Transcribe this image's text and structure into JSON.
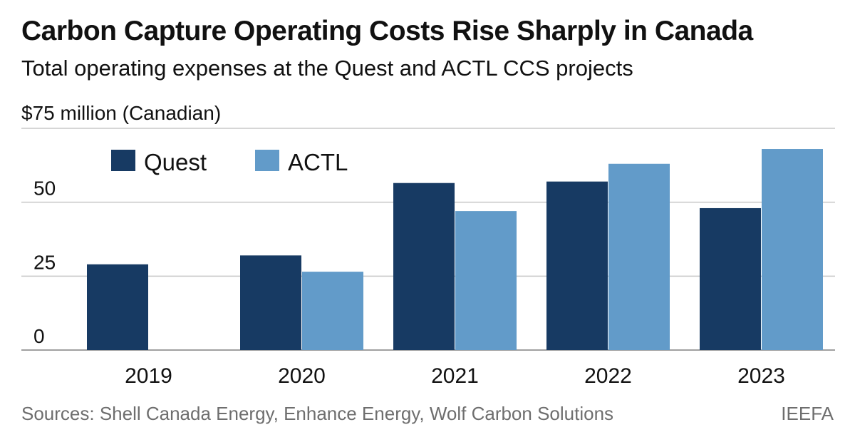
{
  "header": {
    "title": "Carbon Capture Operating Costs Rise Sharply in Canada",
    "subtitle": "Total operating expenses at the Quest and ACTL CCS projects"
  },
  "footer": {
    "source": "Sources: Shell Canada Energy, Enhance Energy, Wolf Carbon Solutions",
    "brand": "IEEFA"
  },
  "colors": {
    "quest": "#173a63",
    "actl": "#629bc9",
    "grid": "#c8c8c8",
    "baseline": "#a0a0a0"
  },
  "chart_data": {
    "type": "bar",
    "title": "Carbon Capture Operating Costs Rise Sharply in Canada",
    "subtitle": "Total operating expenses at the Quest and ACTL CCS projects",
    "ylabel": "$75 million (Canadian)",
    "xlabel": "",
    "categories": [
      "2019",
      "2020",
      "2021",
      "2022",
      "2023"
    ],
    "series": [
      {
        "name": "Quest",
        "values": [
          29,
          32,
          56.5,
          57,
          48
        ]
      },
      {
        "name": "ACTL",
        "values": [
          null,
          26.5,
          47,
          63,
          68
        ]
      }
    ],
    "ylim": [
      0,
      75
    ],
    "yticks": [
      0,
      25,
      50,
      75
    ],
    "ytick_labels": [
      "0",
      "25",
      "50",
      ""
    ],
    "grid": true,
    "legend_position": "top-left"
  }
}
